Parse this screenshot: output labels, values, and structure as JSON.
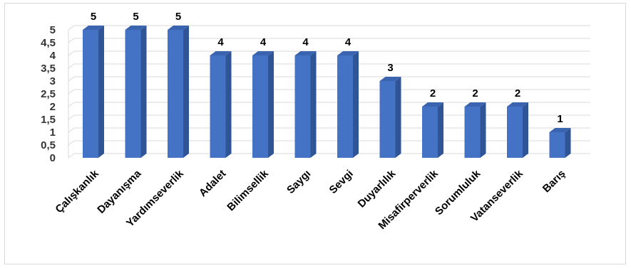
{
  "chart_data": {
    "type": "bar",
    "style": "3d-column",
    "categories": [
      "Çalışkanlık",
      "Dayanışma",
      "Yardımseverlik",
      "Adalet",
      "Bilimsellik",
      "Saygı",
      "Sevgi",
      "Duyarlılık",
      "Misafirperverlik",
      "Sorumluluk",
      "Vatanseverlik",
      "Barış"
    ],
    "values": [
      5,
      5,
      5,
      4,
      4,
      4,
      4,
      3,
      2,
      2,
      2,
      1
    ],
    "data_labels": [
      "5",
      "5",
      "5",
      "4",
      "4",
      "4",
      "4",
      "3",
      "2",
      "2",
      "2",
      "1"
    ],
    "yticks": [
      "0",
      "0,5",
      "1",
      "1,5",
      "2",
      "2,5",
      "3",
      "3,5",
      "4",
      "4,5",
      "5"
    ],
    "ylim": [
      0,
      5
    ],
    "title": "",
    "xlabel": "",
    "ylabel": "",
    "grid": true,
    "legend": "none",
    "colors": {
      "bar_front": "#4472c4",
      "bar_side": "#2f5597",
      "bar_top": "#3a64b0",
      "grid": "#d9d9d9"
    }
  }
}
